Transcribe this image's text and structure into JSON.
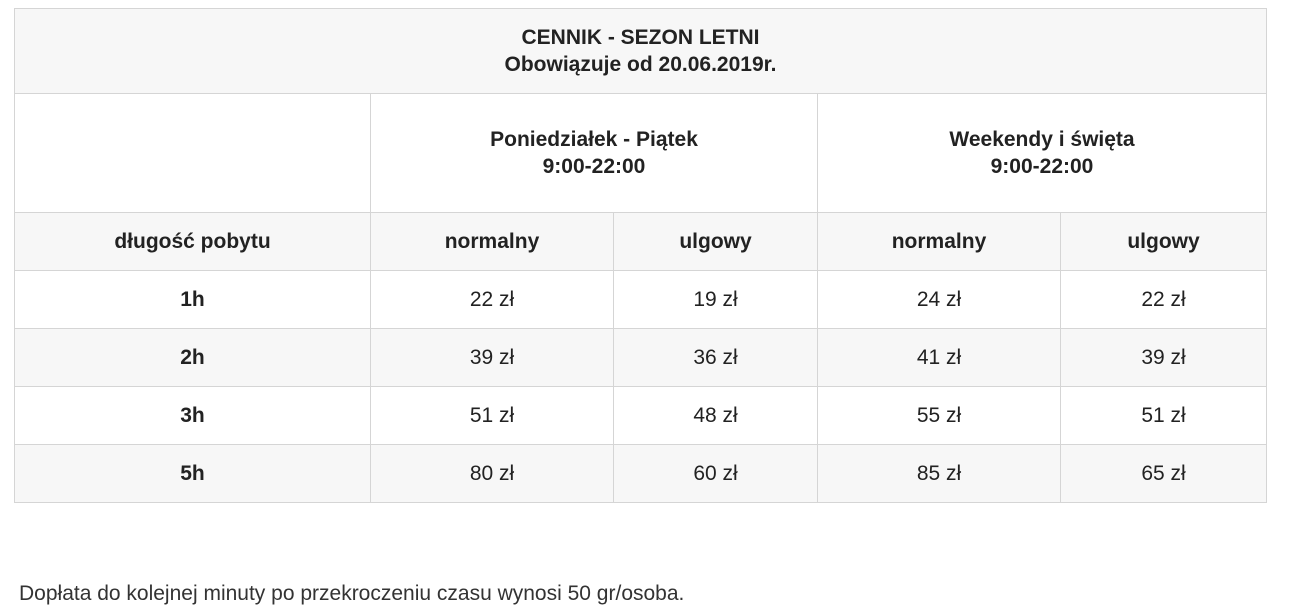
{
  "table": {
    "title_line1": "CENNIK - SEZON LETNI",
    "title_line2": "Obowiązuje od 20.06.2019r.",
    "periods": [
      {
        "name": "Poniedziałek - Piątek",
        "hours": "9:00-22:00"
      },
      {
        "name": "Weekendy i święta",
        "hours": "9:00-22:00"
      }
    ],
    "columns": [
      "długość pobytu",
      "normalny",
      "ulgowy",
      "normalny",
      "ulgowy"
    ],
    "rows": [
      {
        "duration": "1h",
        "weekday_normal": "22 zł",
        "weekday_reduced": "19 zł",
        "weekend_normal": "24 zł",
        "weekend_reduced": "22 zł"
      },
      {
        "duration": "2h",
        "weekday_normal": "39 zł",
        "weekday_reduced": "36 zł",
        "weekend_normal": "41 zł",
        "weekend_reduced": "39 zł"
      },
      {
        "duration": "3h",
        "weekday_normal": "51 zł",
        "weekday_reduced": "48 zł",
        "weekend_normal": "55 zł",
        "weekend_reduced": "51 zł"
      },
      {
        "duration": "5h",
        "weekday_normal": "80 zł",
        "weekday_reduced": "60 zł",
        "weekend_normal": "85 zł",
        "weekend_reduced": "65 zł"
      }
    ]
  },
  "footnote": "Dopłata do kolejnej minuty po przekroczeniu czasu wynosi 50 gr/osoba.",
  "colors": {
    "border": "#d5d5d5",
    "stripe": "#f7f7f7",
    "text": "#222222"
  }
}
